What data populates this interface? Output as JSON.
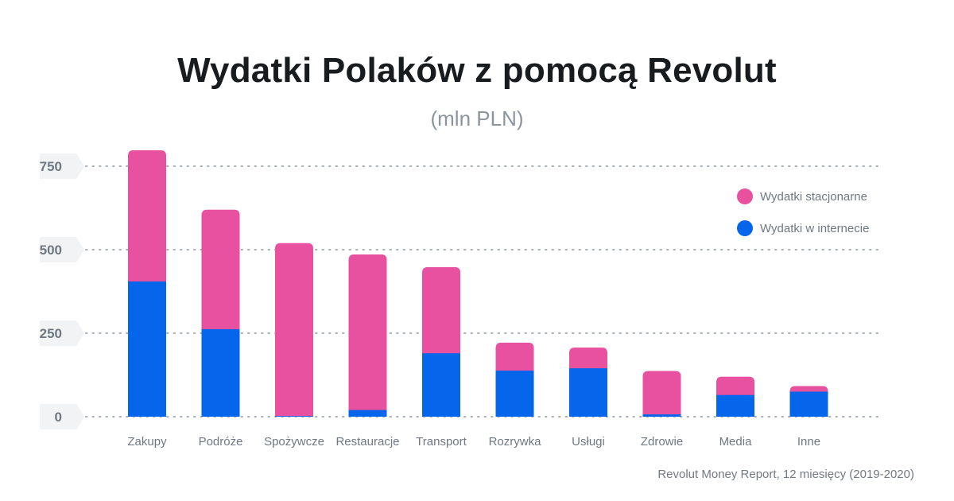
{
  "chart_data": {
    "type": "bar",
    "stacked": true,
    "title": "Wydatki Polaków z pomocą Revolut",
    "subtitle": "(mln PLN)",
    "xlabel": "",
    "ylabel": "",
    "ylim": [
      0,
      800
    ],
    "yticks": [
      0,
      250,
      500,
      750
    ],
    "ytick_labels": [
      "0",
      "250",
      "500",
      "750"
    ],
    "grid": true,
    "legend_position": "top-right",
    "categories": [
      "Zakupy",
      "Podróże",
      "Spożywcze",
      "Restauracje",
      "Transport",
      "Rozrywka",
      "Usługi",
      "Zdrowie",
      "Media",
      "Inne"
    ],
    "series": [
      {
        "name": "Wydatki w internecie",
        "color": "#0666eb",
        "values": [
          405,
          262,
          2,
          20,
          190,
          138,
          145,
          7,
          65,
          75
        ]
      },
      {
        "name": "Wydatki stacjonarne",
        "color": "#e8519f",
        "values": [
          393,
          358,
          518,
          466,
          258,
          84,
          62,
          130,
          55,
          17
        ]
      }
    ],
    "legend": [
      "Wydatki stacjonarne",
      "Wydatki w internecie"
    ],
    "source": "Revolut Money Report, 12 miesięcy (2019-2020)"
  },
  "colors": {
    "offline": "#e8519f",
    "online": "#0666eb",
    "grid": "#a9b0b8",
    "tick_bg": "#f2f3f5"
  }
}
